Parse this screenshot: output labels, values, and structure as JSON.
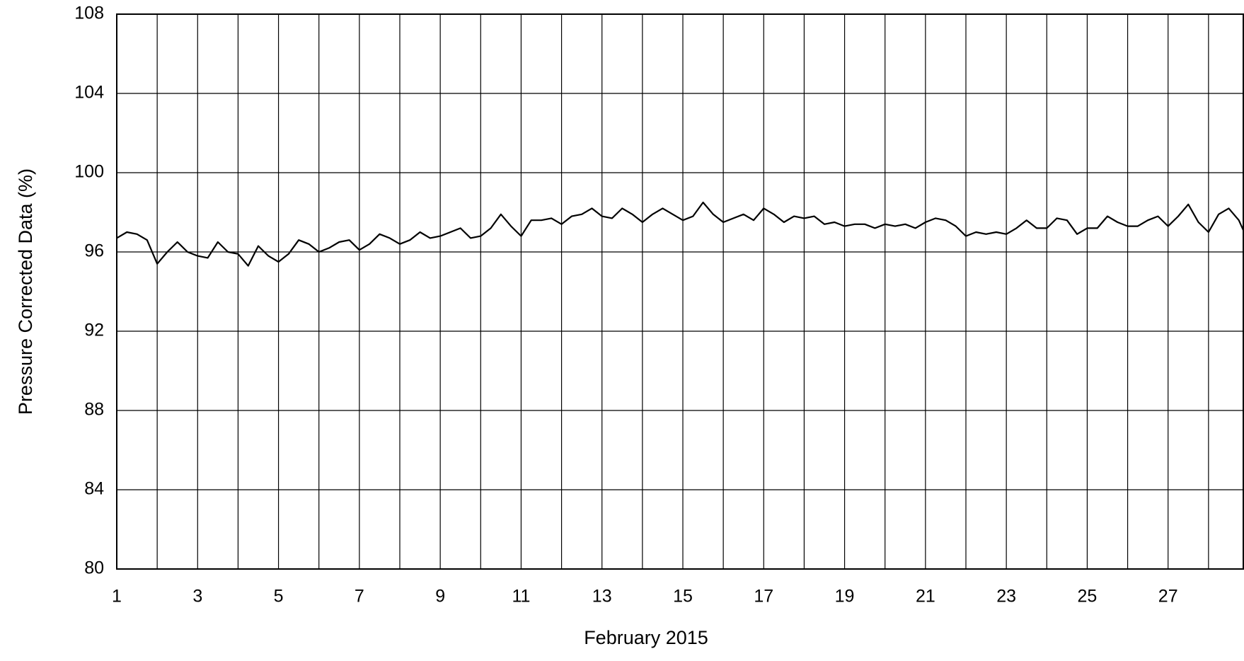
{
  "chart_data": {
    "type": "line",
    "xlabel": "February 2015",
    "ylabel": "Pressure Corrected Data (%)",
    "xlim": [
      1,
      28.86
    ],
    "ylim": [
      80,
      108
    ],
    "xticks": [
      1,
      3,
      5,
      7,
      9,
      11,
      13,
      15,
      17,
      19,
      21,
      23,
      25,
      27
    ],
    "xminorticks": [
      2,
      4,
      6,
      8,
      10,
      12,
      14,
      16,
      18,
      20,
      22,
      24,
      26,
      28
    ],
    "yticks": [
      80,
      84,
      88,
      92,
      96,
      100,
      104,
      108
    ],
    "grid": true,
    "series": [
      {
        "color": "#000000",
        "x": [
          1,
          1.25,
          1.5,
          1.75,
          2,
          2.25,
          2.5,
          2.75,
          3,
          3.25,
          3.5,
          3.75,
          4,
          4.25,
          4.5,
          4.75,
          5,
          5.25,
          5.5,
          5.75,
          6,
          6.25,
          6.5,
          6.75,
          7,
          7.25,
          7.5,
          7.75,
          8,
          8.25,
          8.5,
          8.75,
          9,
          9.25,
          9.5,
          9.75,
          10,
          10.25,
          10.5,
          10.75,
          11,
          11.25,
          11.5,
          11.75,
          12,
          12.25,
          12.5,
          12.75,
          13,
          13.25,
          13.5,
          13.75,
          14,
          14.25,
          14.5,
          14.75,
          15,
          15.25,
          15.5,
          15.75,
          16,
          16.25,
          16.5,
          16.75,
          17,
          17.25,
          17.5,
          17.75,
          18,
          18.25,
          18.5,
          18.75,
          19,
          19.25,
          19.5,
          19.75,
          20,
          20.25,
          20.5,
          20.75,
          21,
          21.25,
          21.5,
          21.75,
          22,
          22.25,
          22.5,
          22.75,
          23,
          23.25,
          23.5,
          23.75,
          24,
          24.25,
          24.5,
          24.75,
          25,
          25.25,
          25.5,
          25.75,
          26,
          26.25,
          26.5,
          26.75,
          27,
          27.25,
          27.5,
          27.75,
          28,
          28.25,
          28.5,
          28.75,
          28.86
        ],
        "values": [
          96.7,
          97.0,
          96.9,
          96.6,
          95.4,
          96.0,
          96.5,
          96.0,
          95.8,
          95.7,
          96.5,
          96.0,
          95.9,
          95.3,
          96.3,
          95.8,
          95.5,
          95.9,
          96.6,
          96.4,
          96.0,
          96.2,
          96.5,
          96.6,
          96.1,
          96.4,
          96.9,
          96.7,
          96.4,
          96.6,
          97.0,
          96.7,
          96.8,
          97.0,
          97.2,
          96.7,
          96.8,
          97.2,
          97.9,
          97.3,
          96.8,
          97.6,
          97.6,
          97.7,
          97.4,
          97.8,
          97.9,
          98.2,
          97.8,
          97.7,
          98.2,
          97.9,
          97.5,
          97.9,
          98.2,
          97.9,
          97.6,
          97.8,
          98.5,
          97.9,
          97.5,
          97.7,
          97.9,
          97.6,
          98.2,
          97.9,
          97.5,
          97.8,
          97.7,
          97.8,
          97.4,
          97.5,
          97.3,
          97.4,
          97.4,
          97.2,
          97.4,
          97.3,
          97.4,
          97.2,
          97.5,
          97.7,
          97.6,
          97.3,
          96.8,
          97.0,
          96.9,
          97.0,
          96.9,
          97.2,
          97.6,
          97.2,
          97.2,
          97.7,
          97.6,
          96.9,
          97.2,
          97.2,
          97.8,
          97.5,
          97.3,
          97.3,
          97.6,
          97.8,
          97.3,
          97.8,
          98.4,
          97.5,
          97.0,
          97.9,
          98.2,
          97.6,
          97.1
        ]
      }
    ]
  }
}
